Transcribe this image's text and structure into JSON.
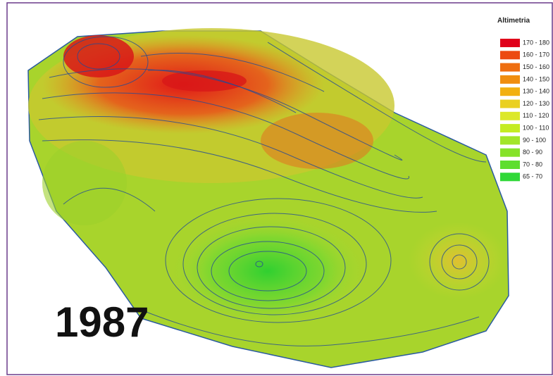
{
  "legend": {
    "title": "Altimetria",
    "entries": [
      {
        "label": "170 - 180",
        "color": "#e0001a"
      },
      {
        "label": "160 - 170",
        "color": "#ec4a12"
      },
      {
        "label": "150 - 160",
        "color": "#ee6e10"
      },
      {
        "label": "140 - 150",
        "color": "#f08e10"
      },
      {
        "label": "130 - 140",
        "color": "#f2b010"
      },
      {
        "label": "120 - 130",
        "color": "#ead020"
      },
      {
        "label": "110 - 120",
        "color": "#dce82a"
      },
      {
        "label": "100 - 110",
        "color": "#c4ec22"
      },
      {
        "label": "90 - 100",
        "color": "#a2e628"
      },
      {
        "label": "80 - 90",
        "color": "#86e22a"
      },
      {
        "label": "70 - 80",
        "color": "#5ede2e"
      },
      {
        "label": "65 - 70",
        "color": "#30d838"
      }
    ]
  },
  "year": "1987"
}
